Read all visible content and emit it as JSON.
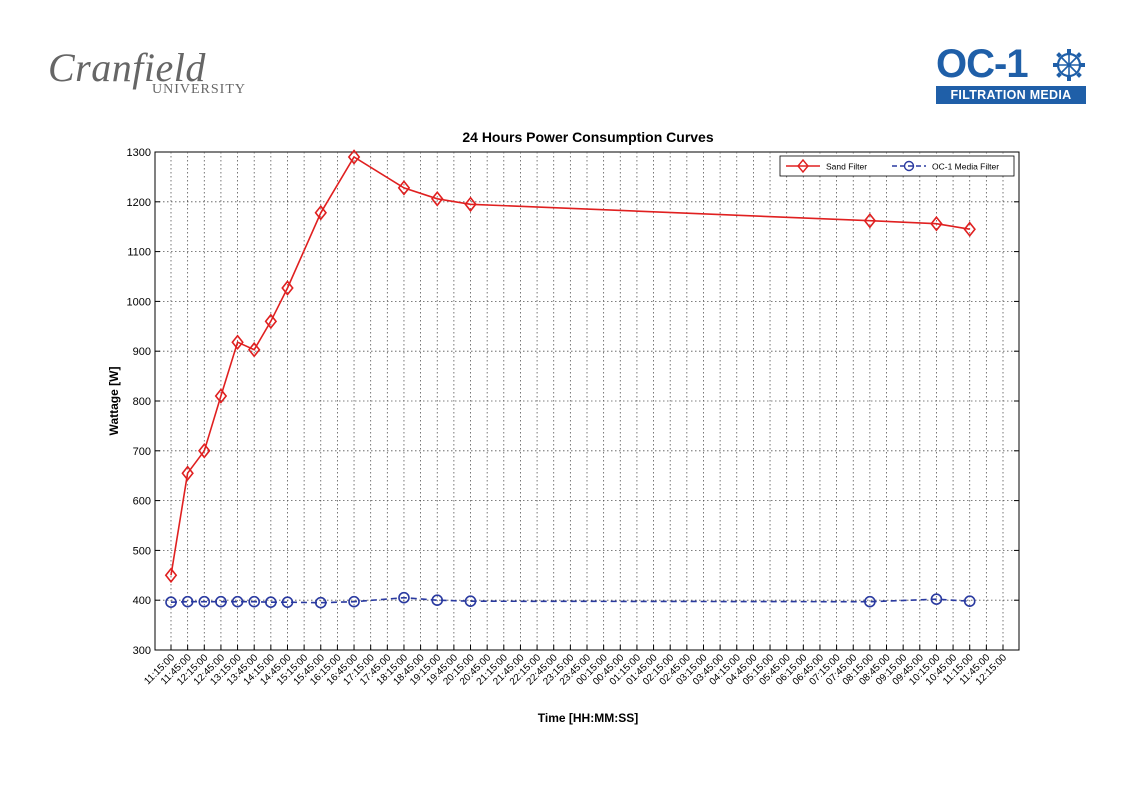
{
  "logos": {
    "cranfield_word": "Cranfield",
    "cranfield_sub": "UNIVERSITY",
    "oc1_word": "OC-1",
    "oc1_sub": "FILTRATION MEDIA"
  },
  "colors": {
    "sand": "#e02020",
    "oc1": "#2a3aa0",
    "brand_blue": "#1f5fa8",
    "grid": "#555555"
  },
  "chart_data": {
    "type": "line",
    "title": "24 Hours Power Consumption Curves",
    "xlabel": "Time [HH:MM:SS]",
    "ylabel": "Wattage [W]",
    "ylim": [
      300,
      1300
    ],
    "yticks": [
      300,
      400,
      500,
      600,
      700,
      800,
      900,
      1000,
      1100,
      1200,
      1300
    ],
    "x_tick_labels": [
      "11:15:00",
      "11:45:00",
      "12:15:00",
      "12:45:00",
      "13:15:00",
      "13:45:00",
      "14:15:00",
      "14:45:00",
      "15:15:00",
      "15:45:00",
      "16:15:00",
      "16:45:00",
      "17:15:00",
      "17:45:00",
      "18:15:00",
      "18:45:00",
      "19:15:00",
      "19:45:00",
      "20:15:00",
      "20:45:00",
      "21:15:00",
      "21:45:00",
      "22:15:00",
      "22:45:00",
      "23:15:00",
      "23:45:00",
      "00:15:00",
      "00:45:00",
      "01:15:00",
      "01:45:00",
      "02:15:00",
      "02:45:00",
      "03:15:00",
      "03:45:00",
      "04:15:00",
      "04:45:00",
      "05:15:00",
      "05:45:00",
      "06:15:00",
      "06:45:00",
      "07:15:00",
      "07:45:00",
      "08:15:00",
      "08:45:00",
      "09:15:00",
      "09:45:00",
      "10:15:00",
      "10:45:00",
      "11:15:00",
      "11:45:00",
      "12:15:00"
    ],
    "grid": true,
    "legend": "top-right",
    "series": [
      {
        "name": "Sand Filter",
        "color": "#e02020",
        "marker": "diamond",
        "line": "solid",
        "points": [
          {
            "x": "11:15:00",
            "y": 450
          },
          {
            "x": "11:45:00",
            "y": 655
          },
          {
            "x": "12:15:00",
            "y": 700
          },
          {
            "x": "12:45:00",
            "y": 810
          },
          {
            "x": "13:15:00",
            "y": 918
          },
          {
            "x": "13:45:00",
            "y": 903
          },
          {
            "x": "14:15:00",
            "y": 960
          },
          {
            "x": "14:45:00",
            "y": 1027
          },
          {
            "x": "15:45:00",
            "y": 1178
          },
          {
            "x": "16:45:00",
            "y": 1290
          },
          {
            "x": "18:15:00",
            "y": 1228
          },
          {
            "x": "19:15:00",
            "y": 1206
          },
          {
            "x": "20:15:00",
            "y": 1195
          },
          {
            "x": "08:15:00",
            "y": 1162
          },
          {
            "x": "10:15:00",
            "y": 1156
          },
          {
            "x": "11:15:00",
            "y": 1145
          }
        ]
      },
      {
        "name": "OC-1 Media Filter",
        "color": "#2a3aa0",
        "marker": "circle",
        "line": "dashed",
        "points": [
          {
            "x": "11:15:00",
            "y": 396
          },
          {
            "x": "11:45:00",
            "y": 397
          },
          {
            "x": "12:15:00",
            "y": 397
          },
          {
            "x": "12:45:00",
            "y": 397
          },
          {
            "x": "13:15:00",
            "y": 397
          },
          {
            "x": "13:45:00",
            "y": 397
          },
          {
            "x": "14:15:00",
            "y": 396
          },
          {
            "x": "14:45:00",
            "y": 396
          },
          {
            "x": "15:45:00",
            "y": 395
          },
          {
            "x": "16:45:00",
            "y": 397
          },
          {
            "x": "18:15:00",
            "y": 405
          },
          {
            "x": "19:15:00",
            "y": 400
          },
          {
            "x": "20:15:00",
            "y": 398
          },
          {
            "x": "08:15:00",
            "y": 397
          },
          {
            "x": "10:15:00",
            "y": 402
          },
          {
            "x": "11:15:00",
            "y": 398
          }
        ]
      }
    ]
  }
}
